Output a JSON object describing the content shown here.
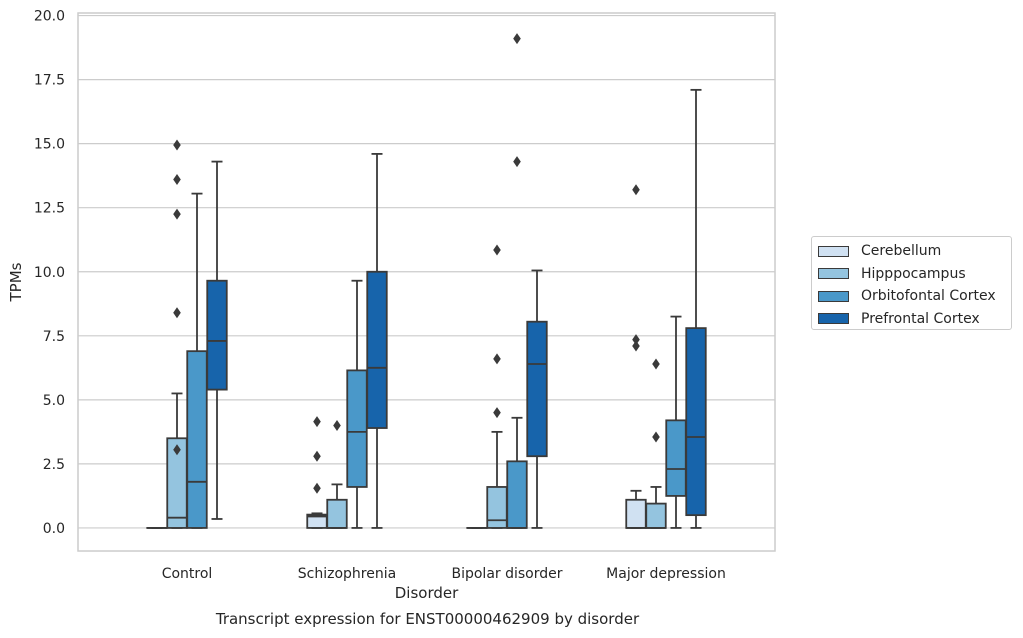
{
  "chart_data": {
    "type": "box",
    "xlabel": "Disorder",
    "ylabel": "TPMs",
    "caption": "Transcript expression for ENST00000462909 by disorder",
    "ylim": [
      -0.9,
      20.1
    ],
    "yticks": [
      0.0,
      2.5,
      5.0,
      7.5,
      10.0,
      12.5,
      15.0,
      17.5,
      20.0
    ],
    "ytick_labels": [
      "0.0",
      "2.5",
      "5.0",
      "7.5",
      "10.0",
      "12.5",
      "15.0",
      "17.5",
      "20.0"
    ],
    "grid": "horizontal",
    "legend_position": "right-center",
    "categories": [
      "Control",
      "Schizophrenia",
      "Bipolar disorder",
      "Major depression"
    ],
    "series": [
      {
        "name": "Cerebellum",
        "color": "#d0e1f2",
        "boxes": [
          {
            "whislo": 0.0,
            "q1": 0.0,
            "med": 0.0,
            "q3": 0.0,
            "whishi": 0.0,
            "fliers": []
          },
          {
            "whislo": 0.0,
            "q1": 0.0,
            "med": 0.45,
            "q3": 0.52,
            "whishi": 0.57,
            "fliers": [
              1.55,
              2.8,
              4.15
            ]
          },
          {
            "whislo": 0.0,
            "q1": 0.0,
            "med": 0.0,
            "q3": 0.0,
            "whishi": 0.0,
            "fliers": []
          },
          {
            "whislo": 0.0,
            "q1": 0.0,
            "med": 0.0,
            "q3": 1.1,
            "whishi": 1.45,
            "fliers": [
              7.1,
              7.35,
              13.2
            ]
          }
        ]
      },
      {
        "name": "Hipppocampus",
        "color": "#94c4df",
        "boxes": [
          {
            "whislo": 0.0,
            "q1": 0.0,
            "med": 0.4,
            "q3": 3.5,
            "whishi": 5.25,
            "fliers": [
              3.05,
              8.4,
              12.25,
              13.6,
              14.95
            ]
          },
          {
            "whislo": 0.0,
            "q1": 0.0,
            "med": 0.0,
            "q3": 1.1,
            "whishi": 1.7,
            "fliers": [
              4.0
            ]
          },
          {
            "whislo": 0.0,
            "q1": 0.0,
            "med": 0.3,
            "q3": 1.6,
            "whishi": 3.75,
            "fliers": [
              4.5,
              6.6,
              10.85
            ]
          },
          {
            "whislo": 0.0,
            "q1": 0.0,
            "med": 0.0,
            "q3": 0.95,
            "whishi": 1.6,
            "fliers": [
              3.55,
              6.4
            ]
          }
        ]
      },
      {
        "name": "Orbitofontal Cortex",
        "color": "#4a98c9",
        "boxes": [
          {
            "whislo": 0.0,
            "q1": 0.0,
            "med": 1.8,
            "q3": 6.9,
            "whishi": 13.05,
            "fliers": []
          },
          {
            "whislo": 0.0,
            "q1": 1.6,
            "med": 3.75,
            "q3": 6.15,
            "whishi": 9.65,
            "fliers": []
          },
          {
            "whislo": 0.0,
            "q1": 0.0,
            "med": 0.0,
            "q3": 2.6,
            "whishi": 4.3,
            "fliers": [
              14.3,
              19.1
            ]
          },
          {
            "whislo": 0.0,
            "q1": 1.25,
            "med": 2.3,
            "q3": 4.2,
            "whishi": 8.25,
            "fliers": []
          }
        ]
      },
      {
        "name": "Prefrontal Cortex",
        "color": "#1764ab",
        "boxes": [
          {
            "whislo": 0.35,
            "q1": 5.4,
            "med": 7.3,
            "q3": 9.65,
            "whishi": 14.3,
            "fliers": []
          },
          {
            "whislo": 0.0,
            "q1": 3.9,
            "med": 6.25,
            "q3": 10.0,
            "whishi": 14.6,
            "fliers": []
          },
          {
            "whislo": 0.0,
            "q1": 2.8,
            "med": 6.4,
            "q3": 8.05,
            "whishi": 10.05,
            "fliers": []
          },
          {
            "whislo": 0.0,
            "q1": 0.5,
            "med": 3.55,
            "q3": 7.8,
            "whishi": 17.1,
            "fliers": []
          }
        ]
      }
    ]
  }
}
